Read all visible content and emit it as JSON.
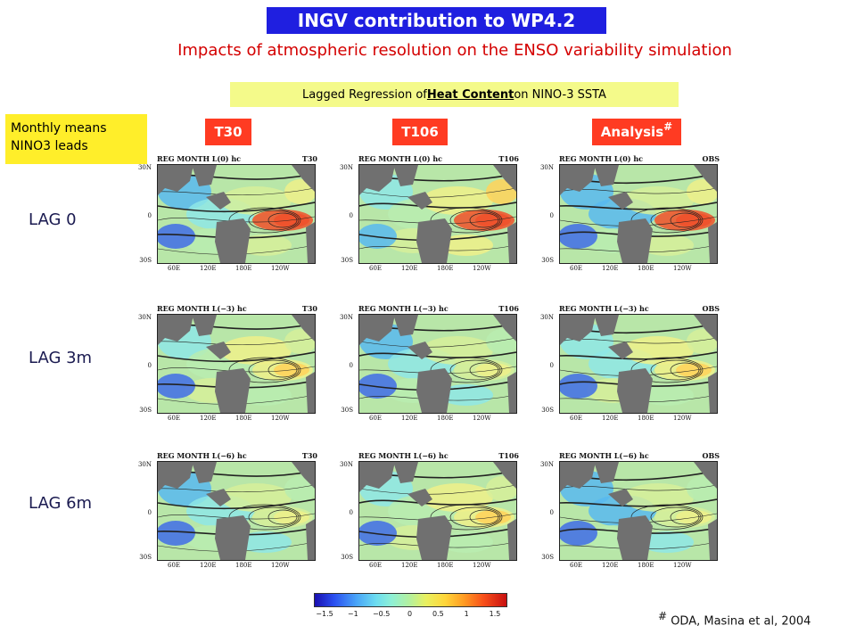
{
  "header": {
    "title": "INGV contribution to WP4.2",
    "subtitle": "Impacts of atmospheric resolution on the ENSO variability simulation",
    "regression_prefix": "Lagged Regression of ",
    "regression_underlined": "Heat Content",
    "regression_suffix": " on NINO-3 SSTA"
  },
  "legend_box": {
    "line1": "Monthly means",
    "line2": "NINO3 leads"
  },
  "columns": [
    {
      "label": "T30",
      "tag": "T30"
    },
    {
      "label": "T106",
      "tag": "T106"
    },
    {
      "label": "Analysis",
      "mark": "#",
      "tag": "OBS"
    }
  ],
  "rows": [
    {
      "label": "LAG 0",
      "panel_title": "REG MONTH L(0) hc"
    },
    {
      "label": "LAG 3m",
      "panel_title": "REG MONTH L(−3) hc"
    },
    {
      "label": "LAG 6m",
      "panel_title": "REG MONTH L(−6) hc"
    }
  ],
  "axes": {
    "lat": [
      "30N",
      "0",
      "30S"
    ],
    "lon": [
      "60E",
      "120E",
      "180E",
      "120W"
    ]
  },
  "colorbar": {
    "ticks": [
      "−1.5",
      "−1",
      "−0.5",
      "0",
      "0.5",
      "1",
      "1.5"
    ]
  },
  "footnote": {
    "mark": "#",
    "text": " ODA, Masina et al, 2004"
  }
}
